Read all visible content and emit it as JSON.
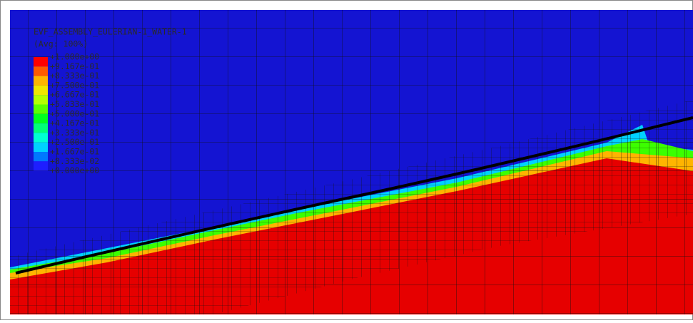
{
  "legend": {
    "title": "EVF_ASSEMBLY_EULERIAN-1_WATER-1",
    "subtitle": "(Avg: 100%)",
    "labels": [
      "+1.000e+00",
      "+9.167e-01",
      "+8.333e-01",
      "+7.500e-01",
      "+6.667e-01",
      "+5.833e-01",
      "+5.000e-01",
      "+4.167e-01",
      "+3.333e-01",
      "+2.500e-01",
      "+1.667e-01",
      "+8.333e-02",
      "+0.000e+00"
    ],
    "colors": [
      "#ff0000",
      "#ff5a00",
      "#ffb400",
      "#f0e600",
      "#b4ff00",
      "#5aff00",
      "#00ff1e",
      "#00ff78",
      "#00ffd2",
      "#00d2ff",
      "#0078ff",
      "#1e1eff"
    ]
  }
}
